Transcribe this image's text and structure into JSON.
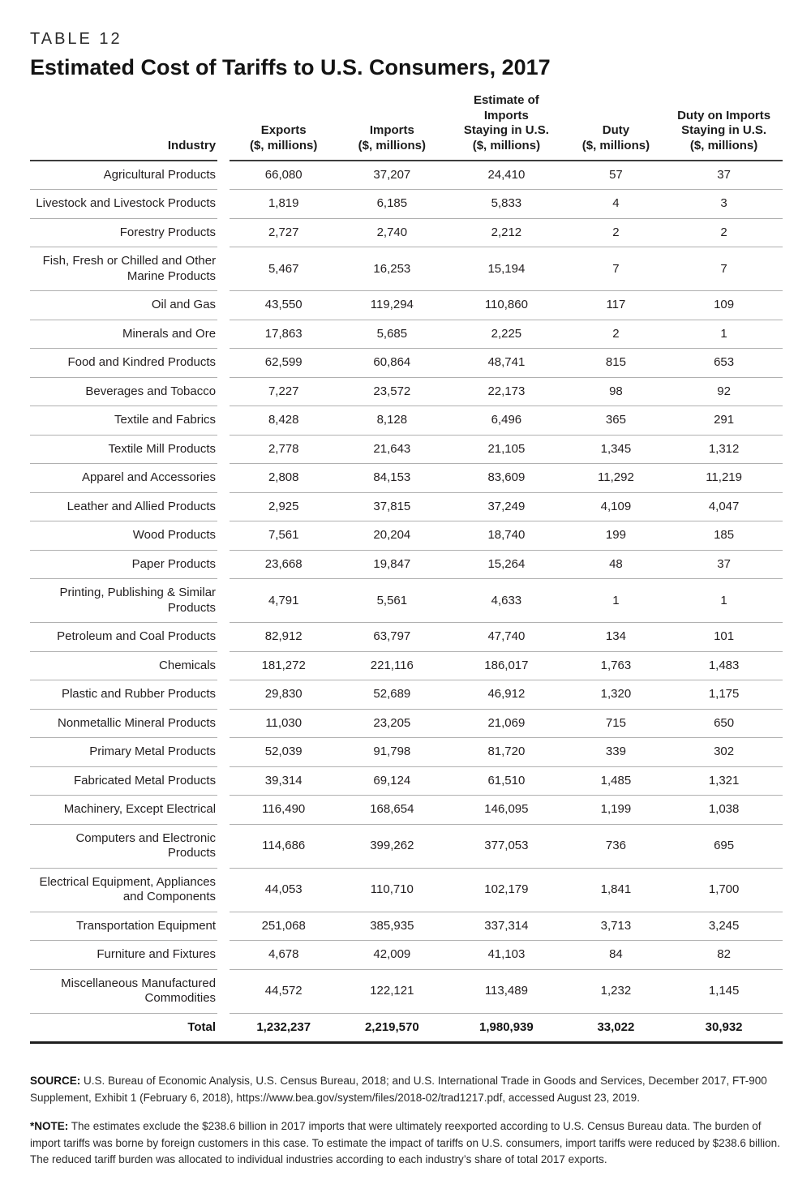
{
  "header": {
    "table_label": "TABLE 12",
    "title": "Estimated Cost of Tariffs to U.S. Consumers, 2017"
  },
  "table": {
    "columns": [
      {
        "label": "Industry"
      },
      {
        "label": [
          "Exports",
          "($, millions)"
        ]
      },
      {
        "label": [
          "Imports",
          "($, millions)"
        ]
      },
      {
        "label": [
          "Estimate of",
          "Imports",
          "Staying in U.S.",
          "($, millions)"
        ]
      },
      {
        "label": [
          "Duty",
          "($, millions)"
        ]
      },
      {
        "label": [
          "Duty on Imports",
          "Staying in U.S.",
          "($, millions)"
        ]
      }
    ],
    "rows": [
      {
        "industry": "Agricultural Products",
        "values": [
          "66,080",
          "37,207",
          "24,410",
          "57",
          "37"
        ]
      },
      {
        "industry": "Livestock and Livestock Products",
        "values": [
          "1,819",
          "6,185",
          "5,833",
          "4",
          "3"
        ]
      },
      {
        "industry": "Forestry Products",
        "values": [
          "2,727",
          "2,740",
          "2,212",
          "2",
          "2"
        ]
      },
      {
        "industry": "Fish, Fresh or Chilled and Other Marine Products",
        "values": [
          "5,467",
          "16,253",
          "15,194",
          "7",
          "7"
        ]
      },
      {
        "industry": "Oil and Gas",
        "values": [
          "43,550",
          "119,294",
          "110,860",
          "117",
          "109"
        ]
      },
      {
        "industry": "Minerals and Ore",
        "values": [
          "17,863",
          "5,685",
          "2,225",
          "2",
          "1"
        ]
      },
      {
        "industry": "Food and Kindred Products",
        "values": [
          "62,599",
          "60,864",
          "48,741",
          "815",
          "653"
        ]
      },
      {
        "industry": "Beverages and Tobacco",
        "values": [
          "7,227",
          "23,572",
          "22,173",
          "98",
          "92"
        ]
      },
      {
        "industry": "Textile and Fabrics",
        "values": [
          "8,428",
          "8,128",
          "6,496",
          "365",
          "291"
        ]
      },
      {
        "industry": "Textile Mill Products",
        "values": [
          "2,778",
          "21,643",
          "21,105",
          "1,345",
          "1,312"
        ]
      },
      {
        "industry": "Apparel and Accessories",
        "values": [
          "2,808",
          "84,153",
          "83,609",
          "11,292",
          "11,219"
        ]
      },
      {
        "industry": "Leather and Allied Products",
        "values": [
          "2,925",
          "37,815",
          "37,249",
          "4,109",
          "4,047"
        ]
      },
      {
        "industry": "Wood Products",
        "values": [
          "7,561",
          "20,204",
          "18,740",
          "199",
          "185"
        ]
      },
      {
        "industry": "Paper Products",
        "values": [
          "23,668",
          "19,847",
          "15,264",
          "48",
          "37"
        ]
      },
      {
        "industry": "Printing, Publishing & Similar Products",
        "values": [
          "4,791",
          "5,561",
          "4,633",
          "1",
          "1"
        ]
      },
      {
        "industry": "Petroleum and Coal Products",
        "values": [
          "82,912",
          "63,797",
          "47,740",
          "134",
          "101"
        ]
      },
      {
        "industry": "Chemicals",
        "values": [
          "181,272",
          "221,116",
          "186,017",
          "1,763",
          "1,483"
        ]
      },
      {
        "industry": "Plastic and Rubber Products",
        "values": [
          "29,830",
          "52,689",
          "46,912",
          "1,320",
          "1,175"
        ]
      },
      {
        "industry": "Nonmetallic Mineral Products",
        "values": [
          "11,030",
          "23,205",
          "21,069",
          "715",
          "650"
        ]
      },
      {
        "industry": "Primary Metal Products",
        "values": [
          "52,039",
          "91,798",
          "81,720",
          "339",
          "302"
        ]
      },
      {
        "industry": "Fabricated Metal Products",
        "values": [
          "39,314",
          "69,124",
          "61,510",
          "1,485",
          "1,321"
        ]
      },
      {
        "industry": "Machinery, Except Electrical",
        "values": [
          "116,490",
          "168,654",
          "146,095",
          "1,199",
          "1,038"
        ]
      },
      {
        "industry": "Computers and Electronic Products",
        "values": [
          "114,686",
          "399,262",
          "377,053",
          "736",
          "695"
        ]
      },
      {
        "industry": "Electrical Equipment, Appliances and Components",
        "values": [
          "44,053",
          "110,710",
          "102,179",
          "1,841",
          "1,700"
        ]
      },
      {
        "industry": "Transportation Equipment",
        "values": [
          "251,068",
          "385,935",
          "337,314",
          "3,713",
          "3,245"
        ]
      },
      {
        "industry": "Furniture and Fixtures",
        "values": [
          "4,678",
          "42,009",
          "41,103",
          "84",
          "82"
        ]
      },
      {
        "industry": "Miscellaneous Manufactured Commodities",
        "values": [
          "44,572",
          "122,121",
          "113,489",
          "1,232",
          "1,145"
        ]
      }
    ],
    "total": {
      "label": "Total",
      "values": [
        "1,232,237",
        "2,219,570",
        "1,980,939",
        "33,022",
        "30,932"
      ]
    }
  },
  "footer": {
    "source_label": "SOURCE:",
    "source_text": " U.S. Bureau of Economic Analysis, U.S. Census Bureau, 2018; and U.S. International Trade in Goods and Services, December 2017, FT-900 Supplement, Exhibit 1 (February 6, 2018), https://www.bea.gov/system/files/2018-02/trad1217.pdf, accessed August 23, 2019.",
    "note_label": "*NOTE:",
    "note_text": " The estimates exclude the $238.6 billion in 2017 imports that were ultimately reexported according to U.S. Census Bureau data. The burden of import tariffs was borne by foreign customers in this case. To estimate the impact of tariffs on U.S. consumers, import tariffs were reduced by $238.6 billion. The reduced tariff burden was allocated to individual industries according to each industry’s share of total 2017 exports."
  },
  "colors": {
    "text": "#231f20",
    "row_divider": "#b0b0b0",
    "header_rule": "#3c3c3c",
    "bottom_rule": "#1f1f1f",
    "background": "#ffffff"
  }
}
